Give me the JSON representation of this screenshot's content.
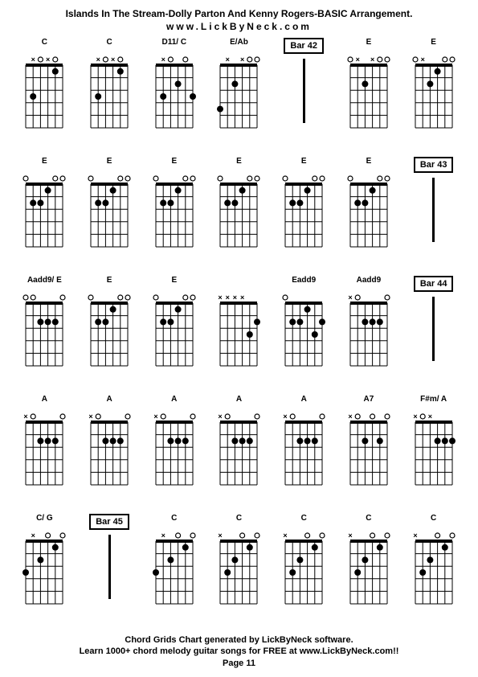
{
  "header": {
    "title": "Islands In The Stream-Dolly Parton And Kenny Rogers-BASIC Arrangement.",
    "url": "www.LickByNeck.com"
  },
  "footer": {
    "line1": "Chord Grids Chart generated by LickByNeck software.",
    "line2": "Learn 1000+ chord melody guitar songs for FREE at www.LickByNeck.com!!",
    "page": "Page 11"
  },
  "styling": {
    "bg": "#ffffff",
    "fg": "#000000",
    "grid_line_color": "#000000",
    "dot_color": "#000000",
    "font_family": "Arial, sans-serif",
    "title_fontsize": 12,
    "label_fontsize": 10,
    "footer_fontsize": 11,
    "strings": 6,
    "frets": 5,
    "grid_cols": 7,
    "grid_rows": 5
  },
  "cells": [
    {
      "type": "chord",
      "label": "C",
      "markers": [
        "",
        "x",
        "o",
        "x",
        "o",
        ""
      ],
      "dots": [
        [
          5,
          3
        ],
        [
          2,
          1
        ]
      ]
    },
    {
      "type": "chord",
      "label": "C",
      "markers": [
        "",
        "x",
        "o",
        "x",
        "o",
        ""
      ],
      "dots": [
        [
          5,
          3
        ],
        [
          2,
          1
        ]
      ]
    },
    {
      "type": "chord",
      "label": "D11/ C",
      "markers": [
        "",
        "x",
        "o",
        "",
        "o",
        ""
      ],
      "dots": [
        [
          5,
          3
        ],
        [
          3,
          2
        ],
        [
          1,
          3
        ]
      ]
    },
    {
      "type": "chord",
      "label": "E/Ab",
      "markers": [
        "",
        "x",
        "",
        "x",
        "o",
        "o"
      ],
      "dots": [
        [
          4,
          2
        ],
        [
          6,
          4
        ]
      ]
    },
    {
      "type": "bar",
      "label": "Bar 42"
    },
    {
      "type": "chord",
      "label": "E",
      "markers": [
        "o",
        "x",
        "",
        "x",
        "o",
        "o"
      ],
      "dots": [
        [
          4,
          2
        ]
      ]
    },
    {
      "type": "chord",
      "label": "E",
      "markers": [
        "o",
        "x",
        "",
        "",
        "o",
        "o"
      ],
      "dots": [
        [
          4,
          2
        ],
        [
          3,
          1
        ]
      ]
    },
    {
      "type": "chord",
      "label": "E",
      "markers": [
        "o",
        "",
        "",
        "",
        "o",
        "o"
      ],
      "dots": [
        [
          5,
          2
        ],
        [
          4,
          2
        ],
        [
          3,
          1
        ]
      ]
    },
    {
      "type": "chord",
      "label": "E",
      "markers": [
        "o",
        "",
        "",
        "",
        "o",
        "o"
      ],
      "dots": [
        [
          5,
          2
        ],
        [
          4,
          2
        ],
        [
          3,
          1
        ]
      ]
    },
    {
      "type": "chord",
      "label": "E",
      "markers": [
        "o",
        "",
        "",
        "",
        "o",
        "o"
      ],
      "dots": [
        [
          5,
          2
        ],
        [
          4,
          2
        ],
        [
          3,
          1
        ]
      ]
    },
    {
      "type": "chord",
      "label": "E",
      "markers": [
        "o",
        "",
        "",
        "",
        "o",
        "o"
      ],
      "dots": [
        [
          5,
          2
        ],
        [
          4,
          2
        ],
        [
          3,
          1
        ]
      ]
    },
    {
      "type": "chord",
      "label": "E",
      "markers": [
        "o",
        "",
        "",
        "",
        "o",
        "o"
      ],
      "dots": [
        [
          5,
          2
        ],
        [
          4,
          2
        ],
        [
          3,
          1
        ]
      ]
    },
    {
      "type": "chord",
      "label": "E",
      "markers": [
        "o",
        "",
        "",
        "",
        "o",
        "o"
      ],
      "dots": [
        [
          5,
          2
        ],
        [
          4,
          2
        ],
        [
          3,
          1
        ]
      ]
    },
    {
      "type": "bar",
      "label": "Bar 43"
    },
    {
      "type": "chord",
      "label": "Aadd9/ E",
      "markers": [
        "o",
        "o",
        "",
        "",
        "",
        "o"
      ],
      "dots": [
        [
          4,
          2
        ],
        [
          3,
          2
        ],
        [
          2,
          2
        ]
      ]
    },
    {
      "type": "chord",
      "label": "E",
      "markers": [
        "o",
        "",
        "",
        "",
        "o",
        "o"
      ],
      "dots": [
        [
          5,
          2
        ],
        [
          4,
          2
        ],
        [
          3,
          1
        ]
      ]
    },
    {
      "type": "chord",
      "label": "E",
      "markers": [
        "o",
        "",
        "",
        "",
        "o",
        "o"
      ],
      "dots": [
        [
          5,
          2
        ],
        [
          4,
          2
        ],
        [
          3,
          1
        ]
      ]
    },
    {
      "type": "chord",
      "label": "",
      "markers": [
        "x",
        "x",
        "x",
        "x",
        "",
        ""
      ],
      "dots": [
        [
          2,
          3
        ],
        [
          1,
          2
        ]
      ]
    },
    {
      "type": "chord",
      "label": "Eadd9",
      "markers": [
        "o",
        "",
        "",
        "",
        "",
        ""
      ],
      "dots": [
        [
          5,
          2
        ],
        [
          4,
          2
        ],
        [
          3,
          1
        ],
        [
          1,
          2
        ],
        [
          2,
          3
        ]
      ]
    },
    {
      "type": "chord",
      "label": "Aadd9",
      "markers": [
        "x",
        "o",
        "",
        "",
        "",
        "o"
      ],
      "dots": [
        [
          4,
          2
        ],
        [
          3,
          2
        ],
        [
          2,
          2
        ]
      ]
    },
    {
      "type": "bar",
      "label": "Bar 44"
    },
    {
      "type": "chord",
      "label": "A",
      "markers": [
        "x",
        "o",
        "",
        "",
        "",
        "o"
      ],
      "dots": [
        [
          4,
          2
        ],
        [
          3,
          2
        ],
        [
          2,
          2
        ]
      ]
    },
    {
      "type": "chord",
      "label": "A",
      "markers": [
        "x",
        "o",
        "",
        "",
        "",
        "o"
      ],
      "dots": [
        [
          4,
          2
        ],
        [
          3,
          2
        ],
        [
          2,
          2
        ]
      ]
    },
    {
      "type": "chord",
      "label": "A",
      "markers": [
        "x",
        "o",
        "",
        "",
        "",
        "o"
      ],
      "dots": [
        [
          4,
          2
        ],
        [
          3,
          2
        ],
        [
          2,
          2
        ]
      ]
    },
    {
      "type": "chord",
      "label": "A",
      "markers": [
        "x",
        "o",
        "",
        "",
        "",
        "o"
      ],
      "dots": [
        [
          4,
          2
        ],
        [
          3,
          2
        ],
        [
          2,
          2
        ]
      ]
    },
    {
      "type": "chord",
      "label": "A",
      "markers": [
        "x",
        "o",
        "",
        "",
        "",
        "o"
      ],
      "dots": [
        [
          4,
          2
        ],
        [
          3,
          2
        ],
        [
          2,
          2
        ]
      ]
    },
    {
      "type": "chord",
      "label": "A7",
      "markers": [
        "x",
        "o",
        "",
        "o",
        "",
        "o"
      ],
      "dots": [
        [
          4,
          2
        ],
        [
          2,
          2
        ]
      ]
    },
    {
      "type": "chord",
      "label": "F#m/ A",
      "markers": [
        "x",
        "o",
        "x",
        "",
        "",
        ""
      ],
      "dots": [
        [
          3,
          2
        ],
        [
          2,
          2
        ],
        [
          1,
          2
        ]
      ]
    },
    {
      "type": "chord",
      "label": "C/ G",
      "markers": [
        "",
        "x",
        "",
        "o",
        "",
        "o"
      ],
      "dots": [
        [
          6,
          3
        ],
        [
          4,
          2
        ],
        [
          2,
          1
        ]
      ]
    },
    {
      "type": "bar",
      "label": "Bar 45"
    },
    {
      "type": "chord",
      "label": "C",
      "markers": [
        "",
        "x",
        "",
        "o",
        "",
        "o"
      ],
      "dots": [
        [
          6,
          3
        ],
        [
          4,
          2
        ],
        [
          2,
          1
        ]
      ]
    },
    {
      "type": "chord",
      "label": "C",
      "markers": [
        "x",
        "",
        "",
        "o",
        "",
        "o"
      ],
      "dots": [
        [
          5,
          3
        ],
        [
          4,
          2
        ],
        [
          2,
          1
        ]
      ]
    },
    {
      "type": "chord",
      "label": "C",
      "markers": [
        "x",
        "",
        "",
        "o",
        "",
        "o"
      ],
      "dots": [
        [
          5,
          3
        ],
        [
          4,
          2
        ],
        [
          2,
          1
        ]
      ]
    },
    {
      "type": "chord",
      "label": "C",
      "markers": [
        "x",
        "",
        "",
        "o",
        "",
        "o"
      ],
      "dots": [
        [
          5,
          3
        ],
        [
          4,
          2
        ],
        [
          2,
          1
        ]
      ]
    },
    {
      "type": "chord",
      "label": "C",
      "markers": [
        "x",
        "",
        "",
        "o",
        "",
        "o"
      ],
      "dots": [
        [
          5,
          3
        ],
        [
          4,
          2
        ],
        [
          2,
          1
        ]
      ]
    }
  ]
}
